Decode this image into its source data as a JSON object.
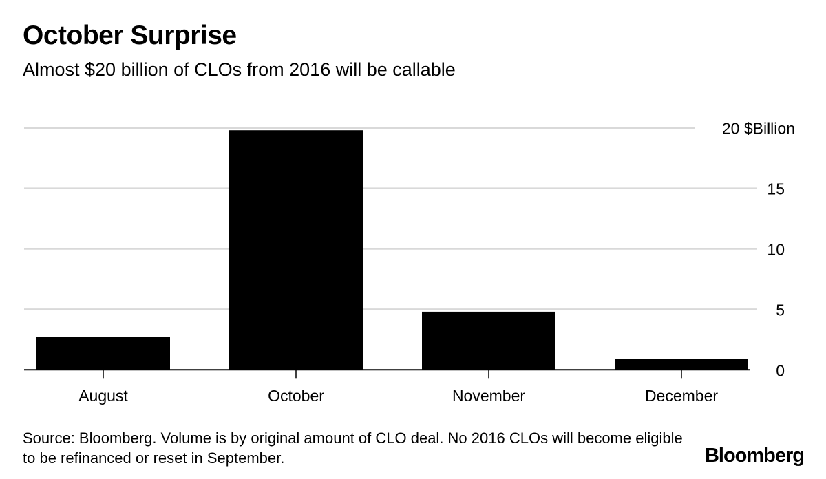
{
  "title": "October Surprise",
  "subtitle": "Almost $20 billion of CLOs from 2016 will be callable",
  "source": "Source: Bloomberg. Volume is by original amount of CLO deal. No 2016 CLOs will become eligible to be refinanced or reset in September.",
  "logo": "Bloomberg",
  "chart_data": {
    "type": "bar",
    "categories": [
      "August",
      "October",
      "November",
      "December"
    ],
    "values": [
      2.7,
      19.8,
      4.8,
      0.9
    ],
    "ylabel": "$Billion",
    "ylim": [
      0,
      20
    ],
    "yticks": [
      0,
      5,
      10,
      15,
      20
    ],
    "ytick_labels": [
      "0",
      "5",
      "10",
      "15",
      "20 $Billion"
    ],
    "y_axis_position": "right",
    "grid": true,
    "bar_color": "#000000",
    "grid_color": "#d9d9d9"
  }
}
